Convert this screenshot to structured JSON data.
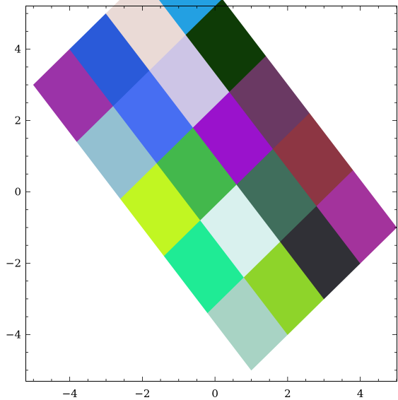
{
  "chart_data": {
    "type": "heatmap",
    "title": "",
    "xlabel": "",
    "ylabel": "",
    "xlim": [
      -5.2,
      5.0
    ],
    "ylim": [
      -5.3,
      5.2
    ],
    "x_ticks": [
      -4,
      -2,
      0,
      2,
      4
    ],
    "y_ticks": [
      4,
      2,
      0,
      -2,
      -4
    ],
    "x_tick_labels": [
      "−4",
      "−2",
      "0",
      "2",
      "4"
    ],
    "y_tick_labels": [
      "4",
      "2",
      "0",
      "−2",
      "−4"
    ],
    "grid": false,
    "origin": [
      -5,
      3
    ],
    "u_vector": [
      1,
      1
    ],
    "v_vector": [
      1.2,
      -1.6
    ],
    "rows": 5,
    "cols": 4,
    "cells": [
      {
        "row": 0,
        "col": 0,
        "color": "#9b33a8"
      },
      {
        "row": 0,
        "col": 1,
        "color": "#2a5ad9"
      },
      {
        "row": 0,
        "col": 2,
        "color": "#eadad6"
      },
      {
        "row": 0,
        "col": 3,
        "color": "#23a0e2"
      },
      {
        "row": 1,
        "col": 0,
        "color": "#93c0d1"
      },
      {
        "row": 1,
        "col": 1,
        "color": "#476ef2"
      },
      {
        "row": 1,
        "col": 2,
        "color": "#cdc5e6"
      },
      {
        "row": 1,
        "col": 3,
        "color": "#0e3b06"
      },
      {
        "row": 2,
        "col": 0,
        "color": "#c1f622"
      },
      {
        "row": 2,
        "col": 1,
        "color": "#43b84c"
      },
      {
        "row": 2,
        "col": 2,
        "color": "#9a12cc"
      },
      {
        "row": 2,
        "col": 3,
        "color": "#6a3963"
      },
      {
        "row": 3,
        "col": 0,
        "color": "#1feb95"
      },
      {
        "row": 3,
        "col": 1,
        "color": "#d9f1ee"
      },
      {
        "row": 3,
        "col": 2,
        "color": "#406e5c"
      },
      {
        "row": 3,
        "col": 3,
        "color": "#8d3643"
      },
      {
        "row": 4,
        "col": 0,
        "color": "#a8d3c4"
      },
      {
        "row": 4,
        "col": 1,
        "color": "#8ed42a"
      },
      {
        "row": 4,
        "col": 2,
        "color": "#303036"
      },
      {
        "row": 4,
        "col": 3,
        "color": "#a3339c"
      }
    ]
  }
}
